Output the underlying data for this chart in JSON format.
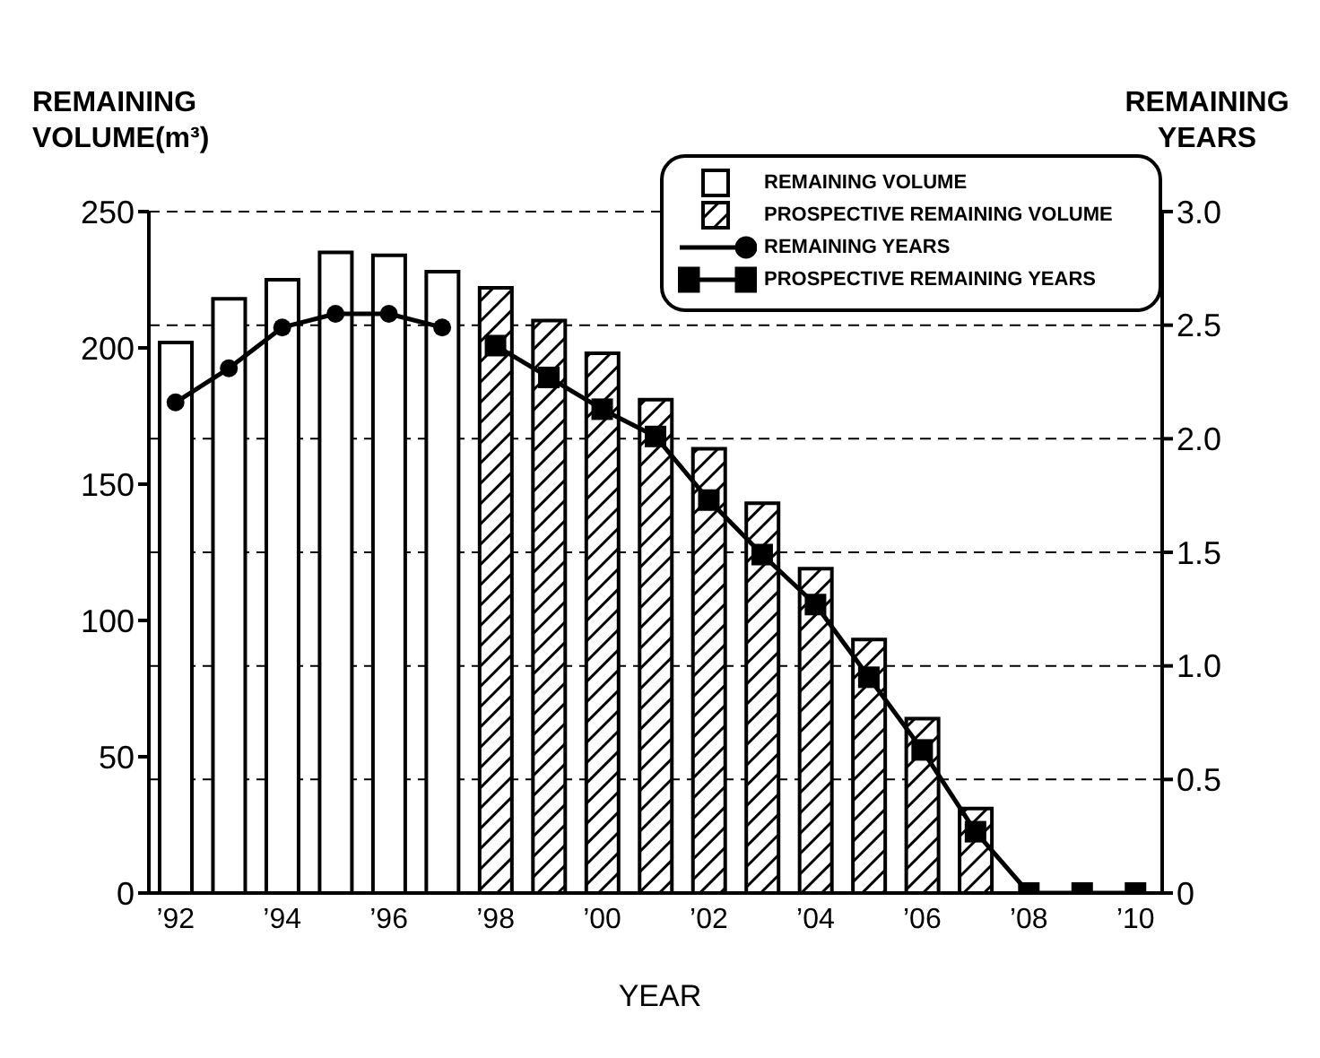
{
  "chart_data": {
    "type": "bar",
    "xlabel": "YEAR",
    "ylabel": "REMAINING VOLUME(m³)",
    "y2label": "REMAINING YEARS",
    "categories": [
      "’92",
      null,
      "’94",
      null,
      "’96",
      null,
      "’98",
      null,
      "’00",
      null,
      "’02",
      null,
      "’04",
      null,
      "’06",
      null,
      "’08",
      null,
      "’10"
    ],
    "series": [
      {
        "name": "REMAINING VOLUME",
        "color": "#000000",
        "values": [
          202,
          218,
          225,
          235,
          234,
          228,
          null,
          null,
          null,
          null,
          null,
          null,
          null,
          null,
          null,
          null,
          null,
          null,
          null
        ]
      },
      {
        "name": "PROSPECTIVE REMAINING VOLUME",
        "color": "#000000",
        "values": [
          null,
          null,
          null,
          null,
          null,
          null,
          222,
          210,
          198,
          181,
          163,
          143,
          119,
          93,
          64,
          31,
          0,
          0,
          0
        ]
      },
      {
        "name": "REMAINING YEARS",
        "type": "line",
        "axis": "y2",
        "marker": "circle",
        "color": "#000000",
        "values": [
          2.16,
          2.31,
          2.49,
          2.55,
          2.55,
          2.49,
          null,
          null,
          null,
          null,
          null,
          null,
          null,
          null,
          null,
          null,
          null,
          null,
          null
        ]
      },
      {
        "name": "PROSPECTIVE REMAINING YEARS",
        "type": "line",
        "axis": "y2",
        "marker": "square",
        "color": "#000000",
        "values": [
          null,
          null,
          null,
          null,
          null,
          null,
          2.41,
          2.27,
          2.13,
          2.01,
          1.73,
          1.49,
          1.27,
          0.95,
          0.63,
          0.27,
          0,
          0,
          0
        ]
      }
    ],
    "stacked": true,
    "ylim": [
      0,
      250
    ],
    "yticks": [
      0,
      50,
      100,
      150,
      200,
      250
    ],
    "y2lim": [
      0,
      3
    ],
    "y2ticks": [
      {
        "value": 0,
        "label": "0"
      },
      {
        "value": 0.5,
        "label": "0.5"
      },
      {
        "value": 1,
        "label": "1.0"
      },
      {
        "value": 1.5,
        "label": "1.5"
      },
      {
        "value": 2,
        "label": "2.0"
      },
      {
        "value": 2.5,
        "label": "2.5"
      },
      {
        "value": 3,
        "label": "3.0"
      }
    ],
    "grid": "y",
    "legend": "top right",
    "line_style": "solid"
  }
}
